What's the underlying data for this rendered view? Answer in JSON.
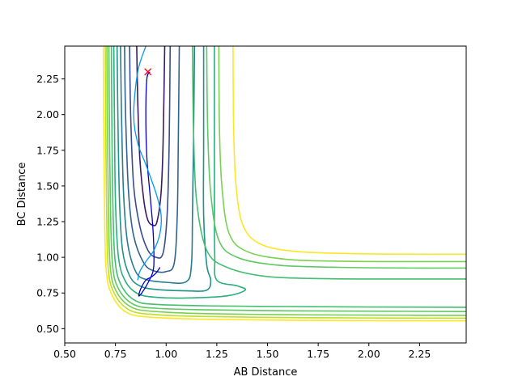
{
  "chart_data": {
    "type": "contour",
    "title": "",
    "xlabel": "AB Distance",
    "ylabel": "BC Distance",
    "xlim": [
      0.5,
      2.48
    ],
    "ylim": [
      0.4,
      2.48
    ],
    "xticks": [
      0.5,
      0.75,
      1.0,
      1.25,
      1.5,
      1.75,
      2.0,
      2.25
    ],
    "xtick_labels": [
      "0.50",
      "0.75",
      "1.00",
      "1.25",
      "1.50",
      "1.75",
      "2.00",
      "2.25"
    ],
    "yticks": [
      0.5,
      0.75,
      1.0,
      1.25,
      1.5,
      1.75,
      2.0,
      2.25
    ],
    "ytick_labels": [
      "0.50",
      "0.75",
      "1.00",
      "1.25",
      "1.50",
      "1.75",
      "2.00",
      "2.25"
    ],
    "grid": false,
    "colors": {
      "contour_low": "#2d1b5e",
      "contour_mid": "#21918c",
      "contour_high": "#fde725",
      "path_dark_blue": "#0000cc",
      "path_light_blue": "#0099ee",
      "marker": "#ff0000"
    },
    "contours": [
      {
        "color": "#3a1a64",
        "points": [
          [
            0.855,
            2.48
          ],
          [
            0.86,
            2.1
          ],
          [
            0.87,
            1.7
          ],
          [
            0.89,
            1.4
          ],
          [
            0.91,
            1.26
          ],
          [
            0.935,
            1.225
          ],
          [
            0.955,
            1.25
          ],
          [
            0.975,
            1.45
          ],
          [
            0.985,
            1.8
          ],
          [
            0.993,
            2.48
          ]
        ]
      },
      {
        "color": "#3b4c8a",
        "points": [
          [
            0.82,
            2.48
          ],
          [
            0.825,
            2.0
          ],
          [
            0.84,
            1.5
          ],
          [
            0.87,
            1.22
          ],
          [
            0.91,
            1.05
          ],
          [
            0.95,
            1.0
          ],
          [
            0.985,
            1.03
          ],
          [
            1.005,
            1.3
          ],
          [
            1.015,
            1.8
          ],
          [
            1.02,
            2.48
          ]
        ]
      },
      {
        "color": "#33638d",
        "points": [
          [
            0.795,
            2.48
          ],
          [
            0.8,
            2.0
          ],
          [
            0.815,
            1.45
          ],
          [
            0.84,
            1.15
          ],
          [
            0.89,
            0.96
          ],
          [
            0.94,
            0.905
          ],
          [
            1.0,
            0.9
          ],
          [
            1.04,
            0.96
          ],
          [
            1.055,
            1.3
          ],
          [
            1.06,
            1.8
          ],
          [
            1.065,
            2.48
          ]
        ]
      },
      {
        "color": "#287d8e",
        "points": [
          [
            0.775,
            2.48
          ],
          [
            0.78,
            2.0
          ],
          [
            0.79,
            1.45
          ],
          [
            0.81,
            1.1
          ],
          [
            0.85,
            0.9
          ],
          [
            0.9,
            0.845
          ],
          [
            1.0,
            0.825
          ],
          [
            1.1,
            0.83
          ],
          [
            1.125,
            0.95
          ],
          [
            1.13,
            1.3
          ],
          [
            1.135,
            1.8
          ],
          [
            1.14,
            2.48
          ]
        ]
      },
      {
        "color": "#21918c",
        "points": [
          [
            0.758,
            2.48
          ],
          [
            0.762,
            2.0
          ],
          [
            0.77,
            1.4
          ],
          [
            0.785,
            1.05
          ],
          [
            0.82,
            0.87
          ],
          [
            0.87,
            0.8
          ],
          [
            0.95,
            0.775
          ],
          [
            1.1,
            0.765
          ],
          [
            1.2,
            0.77
          ],
          [
            1.22,
            0.84
          ],
          [
            1.2,
            0.95
          ],
          [
            1.185,
            1.3
          ],
          [
            1.185,
            1.8
          ],
          [
            1.185,
            2.48
          ]
        ]
      },
      {
        "color": "#2ab07f",
        "points": [
          [
            0.742,
            2.48
          ],
          [
            0.745,
            2.0
          ],
          [
            0.75,
            1.4
          ],
          [
            0.765,
            1.0
          ],
          [
            0.8,
            0.83
          ],
          [
            0.86,
            0.745
          ],
          [
            0.95,
            0.72
          ],
          [
            1.1,
            0.715
          ],
          [
            1.3,
            0.73
          ],
          [
            1.39,
            0.77
          ],
          [
            1.35,
            0.8
          ],
          [
            1.25,
            0.84
          ],
          [
            1.24,
            1.0
          ],
          [
            1.238,
            1.3
          ],
          [
            1.238,
            1.8
          ],
          [
            1.238,
            2.48
          ]
        ]
      },
      {
        "color": "#44bf70",
        "points": [
          [
            0.73,
            2.48
          ],
          [
            0.732,
            2.0
          ],
          [
            0.737,
            1.4
          ],
          [
            0.748,
            0.98
          ],
          [
            0.78,
            0.8
          ],
          [
            0.85,
            0.695
          ],
          [
            0.95,
            0.67
          ],
          [
            1.2,
            0.66
          ],
          [
            1.6,
            0.655
          ],
          [
            2.0,
            0.652
          ],
          [
            2.48,
            0.65
          ]
        ]
      },
      {
        "color": "#5ec962",
        "points": [
          [
            0.718,
            2.48
          ],
          [
            0.72,
            2.0
          ],
          [
            0.725,
            1.4
          ],
          [
            0.735,
            0.96
          ],
          [
            0.765,
            0.78
          ],
          [
            0.84,
            0.67
          ],
          [
            0.95,
            0.643
          ],
          [
            1.2,
            0.632
          ],
          [
            1.6,
            0.625
          ],
          [
            2.0,
            0.623
          ],
          [
            2.48,
            0.62
          ]
        ]
      },
      {
        "color": "#7ad151",
        "points": [
          [
            0.708,
            2.48
          ],
          [
            0.71,
            2.0
          ],
          [
            0.715,
            1.4
          ],
          [
            0.724,
            0.94
          ],
          [
            0.755,
            0.76
          ],
          [
            0.83,
            0.65
          ],
          [
            0.95,
            0.62
          ],
          [
            1.2,
            0.605
          ],
          [
            1.6,
            0.598
          ],
          [
            2.0,
            0.595
          ],
          [
            2.48,
            0.593
          ]
        ]
      },
      {
        "color": "#bddf26",
        "points": [
          [
            0.7,
            2.48
          ],
          [
            0.702,
            2.0
          ],
          [
            0.706,
            1.4
          ],
          [
            0.714,
            0.93
          ],
          [
            0.745,
            0.745
          ],
          [
            0.82,
            0.63
          ],
          [
            0.95,
            0.598
          ],
          [
            1.2,
            0.585
          ],
          [
            1.6,
            0.578
          ],
          [
            2.0,
            0.575
          ],
          [
            2.48,
            0.573
          ]
        ]
      },
      {
        "color": "#fde725",
        "points": [
          [
            0.69,
            2.48
          ],
          [
            0.692,
            2.0
          ],
          [
            0.696,
            1.4
          ],
          [
            0.704,
            0.92
          ],
          [
            0.735,
            0.73
          ],
          [
            0.81,
            0.61
          ],
          [
            0.95,
            0.578
          ],
          [
            1.2,
            0.566
          ],
          [
            1.6,
            0.559
          ],
          [
            2.0,
            0.556
          ],
          [
            2.48,
            0.555
          ]
        ]
      },
      {
        "color": "#44bf70",
        "points": [
          [
            1.13,
            2.48
          ],
          [
            1.135,
            1.9
          ],
          [
            1.15,
            1.4
          ],
          [
            1.2,
            1.05
          ],
          [
            1.3,
            0.93
          ],
          [
            1.5,
            0.865
          ],
          [
            1.8,
            0.85
          ],
          [
            2.1,
            0.848
          ],
          [
            2.48,
            0.848
          ]
        ]
      },
      {
        "color": "#5ec962",
        "points": [
          [
            1.2,
            2.48
          ],
          [
            1.205,
            1.9
          ],
          [
            1.22,
            1.45
          ],
          [
            1.26,
            1.12
          ],
          [
            1.35,
            1.0
          ],
          [
            1.55,
            0.945
          ],
          [
            1.85,
            0.93
          ],
          [
            2.2,
            0.925
          ],
          [
            2.48,
            0.925
          ]
        ]
      },
      {
        "color": "#7ad151",
        "points": [
          [
            1.26,
            2.48
          ],
          [
            1.263,
            1.9
          ],
          [
            1.275,
            1.5
          ],
          [
            1.31,
            1.17
          ],
          [
            1.4,
            1.04
          ],
          [
            1.6,
            0.985
          ],
          [
            1.9,
            0.972
          ],
          [
            2.2,
            0.97
          ],
          [
            2.48,
            0.97
          ]
        ]
      },
      {
        "color": "#fde725",
        "points": [
          [
            1.33,
            2.48
          ],
          [
            1.333,
            1.9
          ],
          [
            1.345,
            1.5
          ],
          [
            1.38,
            1.22
          ],
          [
            1.47,
            1.09
          ],
          [
            1.65,
            1.04
          ],
          [
            1.95,
            1.025
          ],
          [
            2.25,
            1.022
          ],
          [
            2.48,
            1.022
          ]
        ]
      }
    ],
    "paths": [
      {
        "name": "",
        "color": "#0000cc",
        "points": [
          [
            0.92,
            2.3
          ],
          [
            0.905,
            2.25
          ],
          [
            0.9,
            2.0
          ],
          [
            0.905,
            1.7
          ],
          [
            0.92,
            1.45
          ],
          [
            0.935,
            1.2
          ],
          [
            0.94,
            1.0
          ],
          [
            0.935,
            0.9
          ],
          [
            0.91,
            0.82
          ],
          [
            0.88,
            0.75
          ],
          [
            0.865,
            0.73
          ],
          [
            0.875,
            0.78
          ],
          [
            0.9,
            0.84
          ],
          [
            0.925,
            0.86
          ],
          [
            0.95,
            0.89
          ],
          [
            0.97,
            0.93
          ]
        ]
      },
      {
        "name": "",
        "color": "#0099ee",
        "points": [
          [
            0.9,
            2.48
          ],
          [
            0.86,
            2.3
          ],
          [
            0.84,
            2.0
          ],
          [
            0.86,
            1.8
          ],
          [
            0.9,
            1.65
          ],
          [
            0.95,
            1.45
          ],
          [
            0.975,
            1.3
          ],
          [
            0.97,
            1.17
          ],
          [
            0.94,
            1.05
          ],
          [
            0.9,
            0.97
          ],
          [
            0.87,
            0.9
          ],
          [
            0.86,
            0.84
          ]
        ]
      }
    ],
    "markers": [
      {
        "symbol": "x",
        "x": 0.91,
        "y": 2.3,
        "color": "#ff0000"
      }
    ]
  }
}
